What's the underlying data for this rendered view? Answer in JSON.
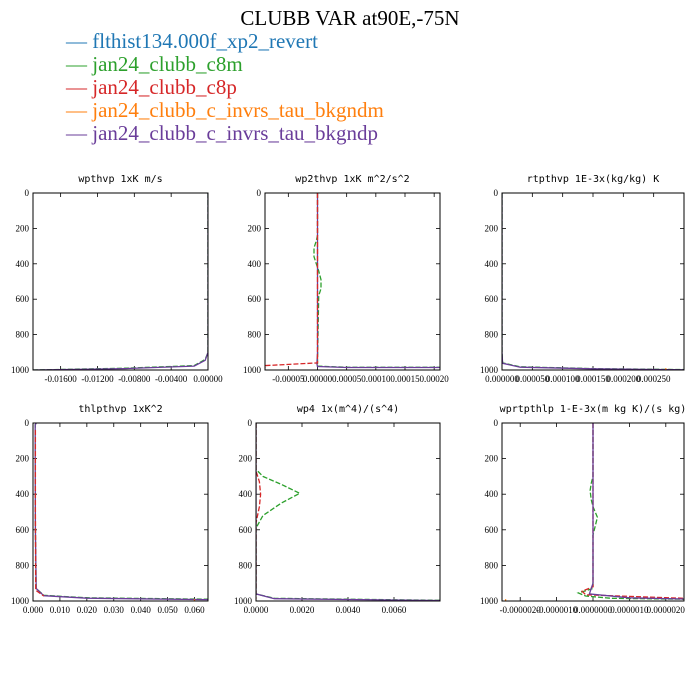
{
  "figure": {
    "title": "CLUBB VAR at90E,-75N"
  },
  "legend": [
    {
      "marker": "—",
      "label": "flthist134.000f_xp2_revert",
      "color": "#1f77b4"
    },
    {
      "marker": "—",
      "label": "jan24_clubb_c8m",
      "color": "#2ca02c"
    },
    {
      "marker": "—",
      "label": "jan24_clubb_c8p",
      "color": "#d62728"
    },
    {
      "marker": "—",
      "label": "jan24_clubb_c_invrs_tau_bkgndm",
      "color": "#ff7f0e"
    },
    {
      "marker": "—",
      "label": "jan24_clubb_c_invrs_tau_bkgndp",
      "color": "#6a3d9a"
    }
  ],
  "chart_data": [
    {
      "type": "line",
      "title": "wpthvp 1xK m/s",
      "xlim": [
        -0.019,
        0.0
      ],
      "ylim": [
        0,
        1000
      ],
      "y_reversed": true,
      "xticks": [
        -0.016,
        -0.012,
        -0.008,
        -0.004,
        0.0
      ],
      "xtick_labels": [
        "-0.01600",
        "-0.01200",
        "-0.00800",
        "-0.00400",
        "0.00000"
      ],
      "yticks": [
        0,
        200,
        400,
        600,
        800,
        1000
      ],
      "ytick_labels": [
        "0",
        "200",
        "400",
        "600",
        "800",
        "1000"
      ],
      "series": [
        {
          "color": "#2ca02c",
          "dashed": true,
          "x": [
            0,
            0,
            0,
            0,
            0,
            0,
            -0.0003,
            -0.0015,
            -0.009,
            -0.019
          ],
          "y": [
            0,
            200,
            400,
            600,
            800,
            900,
            940,
            975,
            990,
            1000
          ]
        },
        {
          "color": "#6a3d9a",
          "dashed": false,
          "x": [
            0,
            0,
            0,
            0,
            0,
            0,
            -0.0003,
            -0.0015,
            -0.009,
            -0.019
          ],
          "y": [
            0,
            200,
            400,
            600,
            800,
            900,
            945,
            978,
            992,
            1000
          ]
        }
      ]
    },
    {
      "type": "line",
      "title": "wp2thvp 1xK m^2/s^2",
      "xlim": [
        -9e-05,
        0.00021
      ],
      "ylim": [
        0,
        1000
      ],
      "y_reversed": true,
      "xticks": [
        -5e-05,
        0.0,
        5e-05,
        0.0001,
        0.00015,
        0.0002
      ],
      "xtick_labels": [
        "-0.00005",
        "0.00000",
        "0.00005",
        "0.00010",
        "0.00015",
        "0.00020"
      ],
      "yticks": [
        0,
        200,
        400,
        600,
        800,
        1000
      ],
      "ytick_labels": [
        "0",
        "200",
        "400",
        "600",
        "800",
        "1000"
      ],
      "series": [
        {
          "color": "#2ca02c",
          "dashed": true,
          "x": [
            0,
            0,
            -2e-06,
            -6e-06,
            -6e-06,
            -2e-06,
            2e-06,
            6e-06,
            6e-06,
            2e-06,
            0,
            0,
            5e-05,
            0.00021
          ],
          "y": [
            0,
            240,
            270,
            310,
            360,
            400,
            440,
            490,
            540,
            580,
            960,
            978,
            985,
            985
          ]
        },
        {
          "color": "#6a3d9a",
          "dashed": false,
          "x": [
            0,
            0,
            -1e-06,
            0,
            5e-05,
            0.00021
          ],
          "y": [
            0,
            900,
            965,
            980,
            986,
            986
          ]
        },
        {
          "color": "#d62728",
          "dashed": true,
          "x": [
            0,
            0,
            -9e-05,
            -9e-05
          ],
          "y": [
            0,
            960,
            975,
            990
          ]
        }
      ]
    },
    {
      "type": "line",
      "title": "rtpthvp 1E-3x(kg/kg) K",
      "xlim": [
        0.0,
        0.0003
      ],
      "ylim": [
        0,
        1000
      ],
      "y_reversed": true,
      "xticks": [
        0.0,
        5e-05,
        0.0001,
        0.00015,
        0.0002,
        0.00025
      ],
      "xtick_labels": [
        "0.000000",
        "0.000050",
        "0.000100",
        "0.000150",
        "0.000200",
        "0.000250"
      ],
      "yticks": [
        0,
        200,
        400,
        600,
        800,
        1000
      ],
      "ytick_labels": [
        "0",
        "200",
        "400",
        "600",
        "800",
        "1000"
      ],
      "series": [
        {
          "color": "#2ca02c",
          "dashed": true,
          "x": [
            0,
            0,
            1e-06,
            3e-05,
            0.00015,
            0.0003
          ],
          "y": [
            0,
            900,
            960,
            982,
            992,
            998
          ]
        },
        {
          "color": "#6a3d9a",
          "dashed": false,
          "x": [
            0,
            0,
            1e-06,
            3e-05,
            0.00015,
            0.0003
          ],
          "y": [
            0,
            900,
            962,
            984,
            993,
            999
          ]
        },
        {
          "color": "#ff7f0e",
          "dashed": false,
          "x": [
            0.00027,
            0.00027
          ],
          "y": [
            990,
            1000
          ]
        }
      ]
    },
    {
      "type": "line",
      "title": "thlpthvp 1xK^2",
      "xlim": [
        0.0,
        0.065
      ],
      "ylim": [
        0,
        1000
      ],
      "y_reversed": true,
      "xticks": [
        0.0,
        0.01,
        0.02,
        0.03,
        0.04,
        0.05,
        0.06
      ],
      "xtick_labels": [
        "0.000",
        "0.010",
        "0.020",
        "0.030",
        "0.040",
        "0.050",
        "0.060"
      ],
      "yticks": [
        0,
        200,
        400,
        600,
        800,
        1000
      ],
      "ytick_labels": [
        "0",
        "200",
        "400",
        "600",
        "800",
        "1000"
      ],
      "series": [
        {
          "color": "#2ca02c",
          "dashed": true,
          "x": [
            0.0012,
            0.0008,
            0.0008,
            0.0009,
            0.0012,
            0.004,
            0.02,
            0.065
          ],
          "y": [
            0,
            10,
            200,
            600,
            930,
            968,
            982,
            990
          ]
        },
        {
          "color": "#6a3d9a",
          "dashed": false,
          "x": [
            0.0012,
            0.0008,
            0.0008,
            0.0009,
            0.0012,
            0.004,
            0.02,
            0.065
          ],
          "y": [
            0,
            10,
            200,
            600,
            930,
            970,
            984,
            992
          ]
        },
        {
          "color": "#d62728",
          "dashed": true,
          "x": [
            0.0009,
            0.0009,
            0.001,
            0.004
          ],
          "y": [
            40,
            500,
            940,
            972
          ]
        },
        {
          "color": "#ff7f0e",
          "dashed": false,
          "x": [
            0.06,
            0.06
          ],
          "y": [
            990,
            1000
          ]
        }
      ]
    },
    {
      "type": "line",
      "title": "wp4 1x(m^4)/(s^4)",
      "xlim": [
        0.0,
        0.008
      ],
      "ylim": [
        0,
        1000
      ],
      "y_reversed": true,
      "xticks": [
        0.0,
        0.002,
        0.004,
        0.006
      ],
      "xtick_labels": [
        "0.0000",
        "0.0020",
        "0.0040",
        "0.0060"
      ],
      "yticks": [
        0,
        200,
        400,
        600,
        800,
        1000
      ],
      "ytick_labels": [
        "0",
        "200",
        "400",
        "600",
        "800",
        "1000"
      ],
      "series": [
        {
          "color": "#2ca02c",
          "dashed": true,
          "x": [
            0.0,
            0.0,
            0.0003,
            0.0011,
            0.0019,
            0.0011,
            0.0003,
            0.0,
            0.0,
            0.0008,
            0.008
          ],
          "y": [
            0,
            260,
            300,
            345,
            395,
            450,
            520,
            590,
            960,
            985,
            996
          ]
        },
        {
          "color": "#d62728",
          "dashed": true,
          "x": [
            0.0,
            0.0,
            0.00015,
            0.0002,
            0.00015,
            0.0,
            0.0
          ],
          "y": [
            0,
            270,
            330,
            400,
            470,
            560,
            990
          ]
        },
        {
          "color": "#6a3d9a",
          "dashed": false,
          "x": [
            0.0,
            0.0,
            0.0008,
            0.008
          ],
          "y": [
            0,
            960,
            987,
            997
          ]
        }
      ]
    },
    {
      "type": "line",
      "title": "wprtpthlp 1-E-3x(m kg K)/(s kg)",
      "xlim": [
        -2.5e-06,
        2.5e-06
      ],
      "ylim": [
        0,
        1000
      ],
      "y_reversed": true,
      "xticks": [
        -2e-06,
        -1e-06,
        0.0,
        1e-06,
        2e-06
      ],
      "xtick_labels": [
        "-0.0000020",
        "-0.0000010",
        "0.0000000",
        "0.0000010",
        "0.0000020"
      ],
      "yticks": [
        0,
        200,
        400,
        600,
        800,
        1000
      ],
      "ytick_labels": [
        "0",
        "200",
        "400",
        "600",
        "800",
        "1000"
      ],
      "series": [
        {
          "color": "#2ca02c",
          "dashed": true,
          "x": [
            0.0,
            0.0,
            -5e-08,
            -8e-08,
            -5e-08,
            0.0,
            6e-08,
            1.2e-07,
            6e-08,
            0.0,
            0.0,
            -4e-07,
            -2e-07,
            5e-07,
            2.5e-06
          ],
          "y": [
            0,
            300,
            340,
            380,
            430,
            470,
            500,
            530,
            580,
            630,
            930,
            955,
            972,
            985,
            990
          ]
        },
        {
          "color": "#d62728",
          "dashed": true,
          "x": [
            0.0,
            0.0,
            -3e-07,
            -2e-07,
            2.5e-06
          ],
          "y": [
            0,
            920,
            945,
            965,
            985
          ]
        },
        {
          "color": "#6a3d9a",
          "dashed": false,
          "x": [
            0.0,
            0.0,
            -1e-07,
            1e-06,
            2.5e-06
          ],
          "y": [
            0,
            900,
            960,
            982,
            989
          ]
        },
        {
          "color": "#ff7f0e",
          "dashed": false,
          "x": [
            -2.4e-06,
            -2.4e-06
          ],
          "y": [
            990,
            1000
          ]
        }
      ]
    }
  ]
}
